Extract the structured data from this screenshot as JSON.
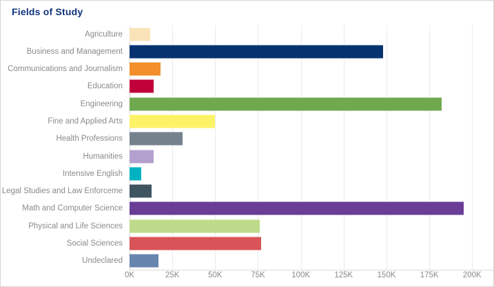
{
  "panel": {
    "title": "Fields of Study"
  },
  "chart_data": {
    "type": "bar",
    "orientation": "horizontal",
    "title": "Fields of Study",
    "categories": [
      "Agriculture",
      "Business and Management",
      "Communications and Journalism",
      "Education",
      "Engineering",
      "Fine and Applied Arts",
      "Health Professions",
      "Humanities",
      "Intensive English",
      "Legal Studies and Law Enforceme",
      "Math and Computer Science",
      "Physical and Life Sciences",
      "Social Sciences",
      "Undeclared"
    ],
    "values_k": [
      12,
      148,
      18,
      14,
      182,
      50,
      31,
      14,
      7,
      13,
      195,
      76,
      77,
      17
    ],
    "value_unit": "K",
    "bar_colors": [
      "#FAE3B8",
      "#063370",
      "#F28E2B",
      "#C1003A",
      "#70A84F",
      "#FCF266",
      "#76818E",
      "#B3A0CF",
      "#00B2C2",
      "#3F5461",
      "#6A3D96",
      "#BDDB8A",
      "#D95459",
      "#6784AE"
    ],
    "x_ticks": [
      "0K",
      "25K",
      "50K",
      "75K",
      "100K",
      "125K",
      "150K",
      "175K",
      "200K"
    ],
    "x_tick_values_k": [
      0,
      25,
      50,
      75,
      100,
      125,
      150,
      175,
      200
    ],
    "xlim_k": [
      0,
      212
    ],
    "grid": "vertical",
    "legend": "none"
  },
  "styles": {
    "title_color": "#10337F",
    "category_label_color": "#8A8A8A",
    "axis_label_color": "#8A8A8A",
    "gridline_color": "#EAEAEA",
    "axis_line_color": "#D9D9D9",
    "panel_border_color": "#D4D4D4",
    "background_color": "#FFFFFF"
  }
}
